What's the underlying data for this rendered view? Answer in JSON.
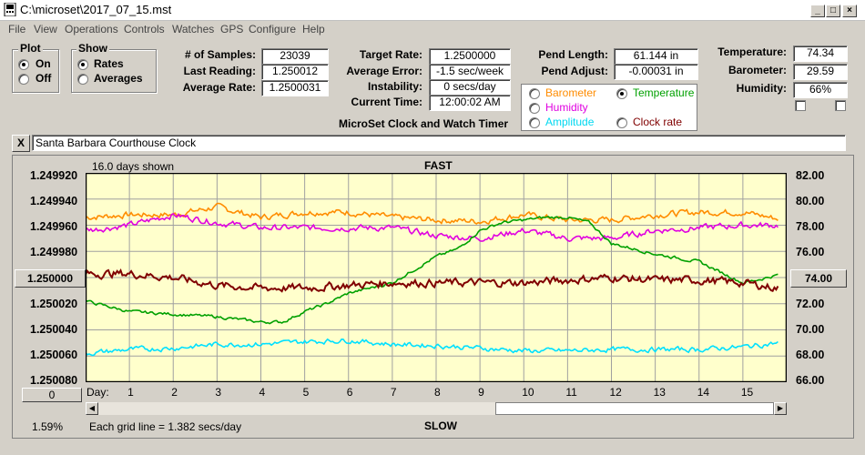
{
  "window": {
    "title": "C:\\microset\\2017_07_15.mst"
  },
  "menu": [
    "File",
    "View",
    "Operations",
    "Controls",
    "Watches",
    "GPS",
    "Configure",
    "Help"
  ],
  "plot_group": {
    "title": "Plot",
    "options": [
      "On",
      "Off"
    ],
    "selected": "On"
  },
  "show_group": {
    "title": "Show",
    "options": [
      "Rates",
      "Averages"
    ],
    "selected": "Rates"
  },
  "stats": {
    "samples_label": "# of Samples:",
    "samples": "23039",
    "last_reading_label": "Last Reading:",
    "last_reading": "1.250012",
    "average_rate_label": "Average Rate:",
    "average_rate": "1.2500031",
    "target_rate_label": "Target Rate:",
    "target_rate": "1.2500000",
    "average_error_label": "Average Error:",
    "average_error": "-1.5 sec/week",
    "instability_label": "Instability:",
    "instability": "0 secs/day",
    "current_time_label": "Current Time:",
    "current_time": "12:00:02 AM",
    "pend_length_label": "Pend Length:",
    "pend_length": "61.144 in",
    "pend_adjust_label": "Pend Adjust:",
    "pend_adjust": "-0.00031 in"
  },
  "sensors": {
    "temperature_label": "Temperature:",
    "temperature": "74.34",
    "barometer_label": "Barometer:",
    "barometer": "29.59",
    "humidity_label": "Humidity:",
    "humidity": "66%"
  },
  "app_caption": "MicroSet Clock and Watch Timer",
  "series_select": {
    "barometer": "Barometer",
    "temperature": "Temperature",
    "humidity": "Humidity",
    "amplitude": "Amplitude",
    "clock_rate": "Clock rate",
    "selected": "Temperature"
  },
  "clock_name": "Santa Barbara Courthouse Clock",
  "close_label": "X",
  "left_axis_button": "1.250000",
  "right_axis_button": "74.00",
  "zero_button": "0",
  "status": {
    "percent": "1.59%",
    "grid_line_note": "Each grid line = 1.382 secs/day"
  },
  "colors": {
    "barometer": "#ff8c00",
    "temperature": "#00a000",
    "humidity": "#e000e0",
    "amplitude": "#00e0ff",
    "clock_rate": "#800000",
    "plot_bg": "#ffffcc"
  },
  "chart_data": {
    "type": "line",
    "days_shown": "16.0 days shown",
    "top_label": "FAST",
    "bottom_label": "SLOW",
    "xlabel": "Day:",
    "x_ticks": [
      1,
      2,
      3,
      4,
      5,
      6,
      7,
      8,
      9,
      10,
      11,
      12,
      13,
      14,
      15
    ],
    "xlim": [
      0,
      16
    ],
    "left_axis": {
      "ticks": [
        "1.249920",
        "1.249940",
        "1.249960",
        "1.249980",
        "1.250000",
        "1.250020",
        "1.250040",
        "1.250060",
        "1.250080"
      ],
      "ylim": [
        1.24992,
        1.25008
      ],
      "inverted": true
    },
    "right_axis": {
      "ticks": [
        "82.00",
        "80.00",
        "78.00",
        "76.00",
        "74.00",
        "72.00",
        "70.00",
        "68.00",
        "66.00"
      ],
      "ylim": [
        66,
        82
      ]
    },
    "grid": true,
    "series": [
      {
        "name": "Barometer",
        "color": "#ff8c00",
        "noise": 0.25,
        "x": [
          0,
          1,
          2,
          3,
          4,
          5,
          6,
          7,
          8,
          9,
          10,
          11,
          12,
          13,
          14,
          15,
          15.8
        ],
        "values": [
          78.6,
          78.8,
          78.8,
          79.4,
          78.6,
          79.0,
          79.0,
          78.6,
          78.4,
          78.3,
          78.8,
          78.4,
          78.4,
          78.8,
          79.0,
          79.0,
          78.5
        ]
      },
      {
        "name": "Humidity",
        "color": "#e000e0",
        "noise": 0.25,
        "x": [
          0,
          1,
          2,
          3,
          4,
          5,
          6,
          7,
          8,
          9,
          10,
          11,
          12,
          13,
          14,
          15,
          15.8
        ],
        "values": [
          77.6,
          78.0,
          78.8,
          78.2,
          77.8,
          77.8,
          77.8,
          77.8,
          77.2,
          77.0,
          77.6,
          77.0,
          77.0,
          77.6,
          77.8,
          78.0,
          78.0
        ]
      },
      {
        "name": "Temperature",
        "color": "#00a000",
        "noise": 0.12,
        "x": [
          0,
          1,
          2,
          3,
          4,
          4.5,
          5,
          5.5,
          6,
          7,
          7.5,
          8,
          8.5,
          9,
          9.5,
          10,
          10.5,
          11,
          11.5,
          12,
          13,
          14,
          14.5,
          15,
          15.3,
          15.8
        ],
        "values": [
          72.2,
          71.4,
          71.2,
          71.0,
          70.6,
          70.6,
          71.4,
          72.0,
          72.8,
          73.6,
          74.6,
          75.6,
          76.2,
          77.6,
          78.2,
          78.4,
          78.6,
          78.6,
          78.2,
          76.6,
          75.8,
          75.2,
          74.4,
          73.6,
          73.8,
          74.2
        ]
      },
      {
        "name": "Clock rate",
        "color": "#800000",
        "noise": 0.32,
        "x": [
          0,
          1,
          2,
          3,
          4,
          5,
          6,
          7,
          8,
          9,
          10,
          11,
          12,
          13,
          14,
          15,
          15.8
        ],
        "values": [
          74.3,
          74.3,
          74.0,
          73.4,
          73.2,
          73.2,
          73.4,
          73.6,
          73.6,
          73.6,
          73.6,
          73.8,
          74.0,
          73.8,
          73.8,
          73.6,
          73.2
        ]
      },
      {
        "name": "Amplitude",
        "color": "#00e0ff",
        "noise": 0.2,
        "x": [
          0,
          1,
          2,
          3,
          4,
          5,
          6,
          7,
          8,
          9,
          10,
          11,
          12,
          13,
          14,
          15,
          15.8
        ],
        "values": [
          68.2,
          68.5,
          68.6,
          68.9,
          68.9,
          69.1,
          69.2,
          68.9,
          68.8,
          68.6,
          68.4,
          68.4,
          68.5,
          68.5,
          68.5,
          68.7,
          69.0
        ]
      }
    ]
  }
}
